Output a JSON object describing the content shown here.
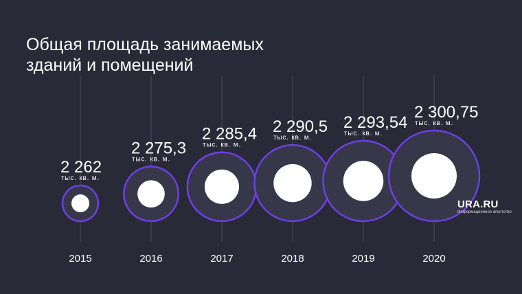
{
  "title": {
    "line1": "Общая площадь занимаемых",
    "line2": "зданий и помещений"
  },
  "brand": {
    "name": "URA.RU",
    "subtitle": "Информационное агентство"
  },
  "colors": {
    "background": "#282a38",
    "ring": "#6f3ee6",
    "ring_fill": "#363849",
    "dot": "#ffffff",
    "guide_line": "#4a4c5c",
    "text": "#ffffff"
  },
  "chart_data": {
    "type": "bubble",
    "title": "Общая площадь занимаемых зданий и помещений",
    "categories": [
      "2015",
      "2016",
      "2017",
      "2018",
      "2019",
      "2020"
    ],
    "values": [
      2262,
      2275.3,
      2285.4,
      2290.5,
      2293.54,
      2300.75
    ],
    "value_labels": [
      "2 262",
      "2 275,3",
      "2 285,4",
      "2 290,5",
      "2 293,54",
      "2 300,75"
    ],
    "unit": "тыс. кв. м."
  }
}
